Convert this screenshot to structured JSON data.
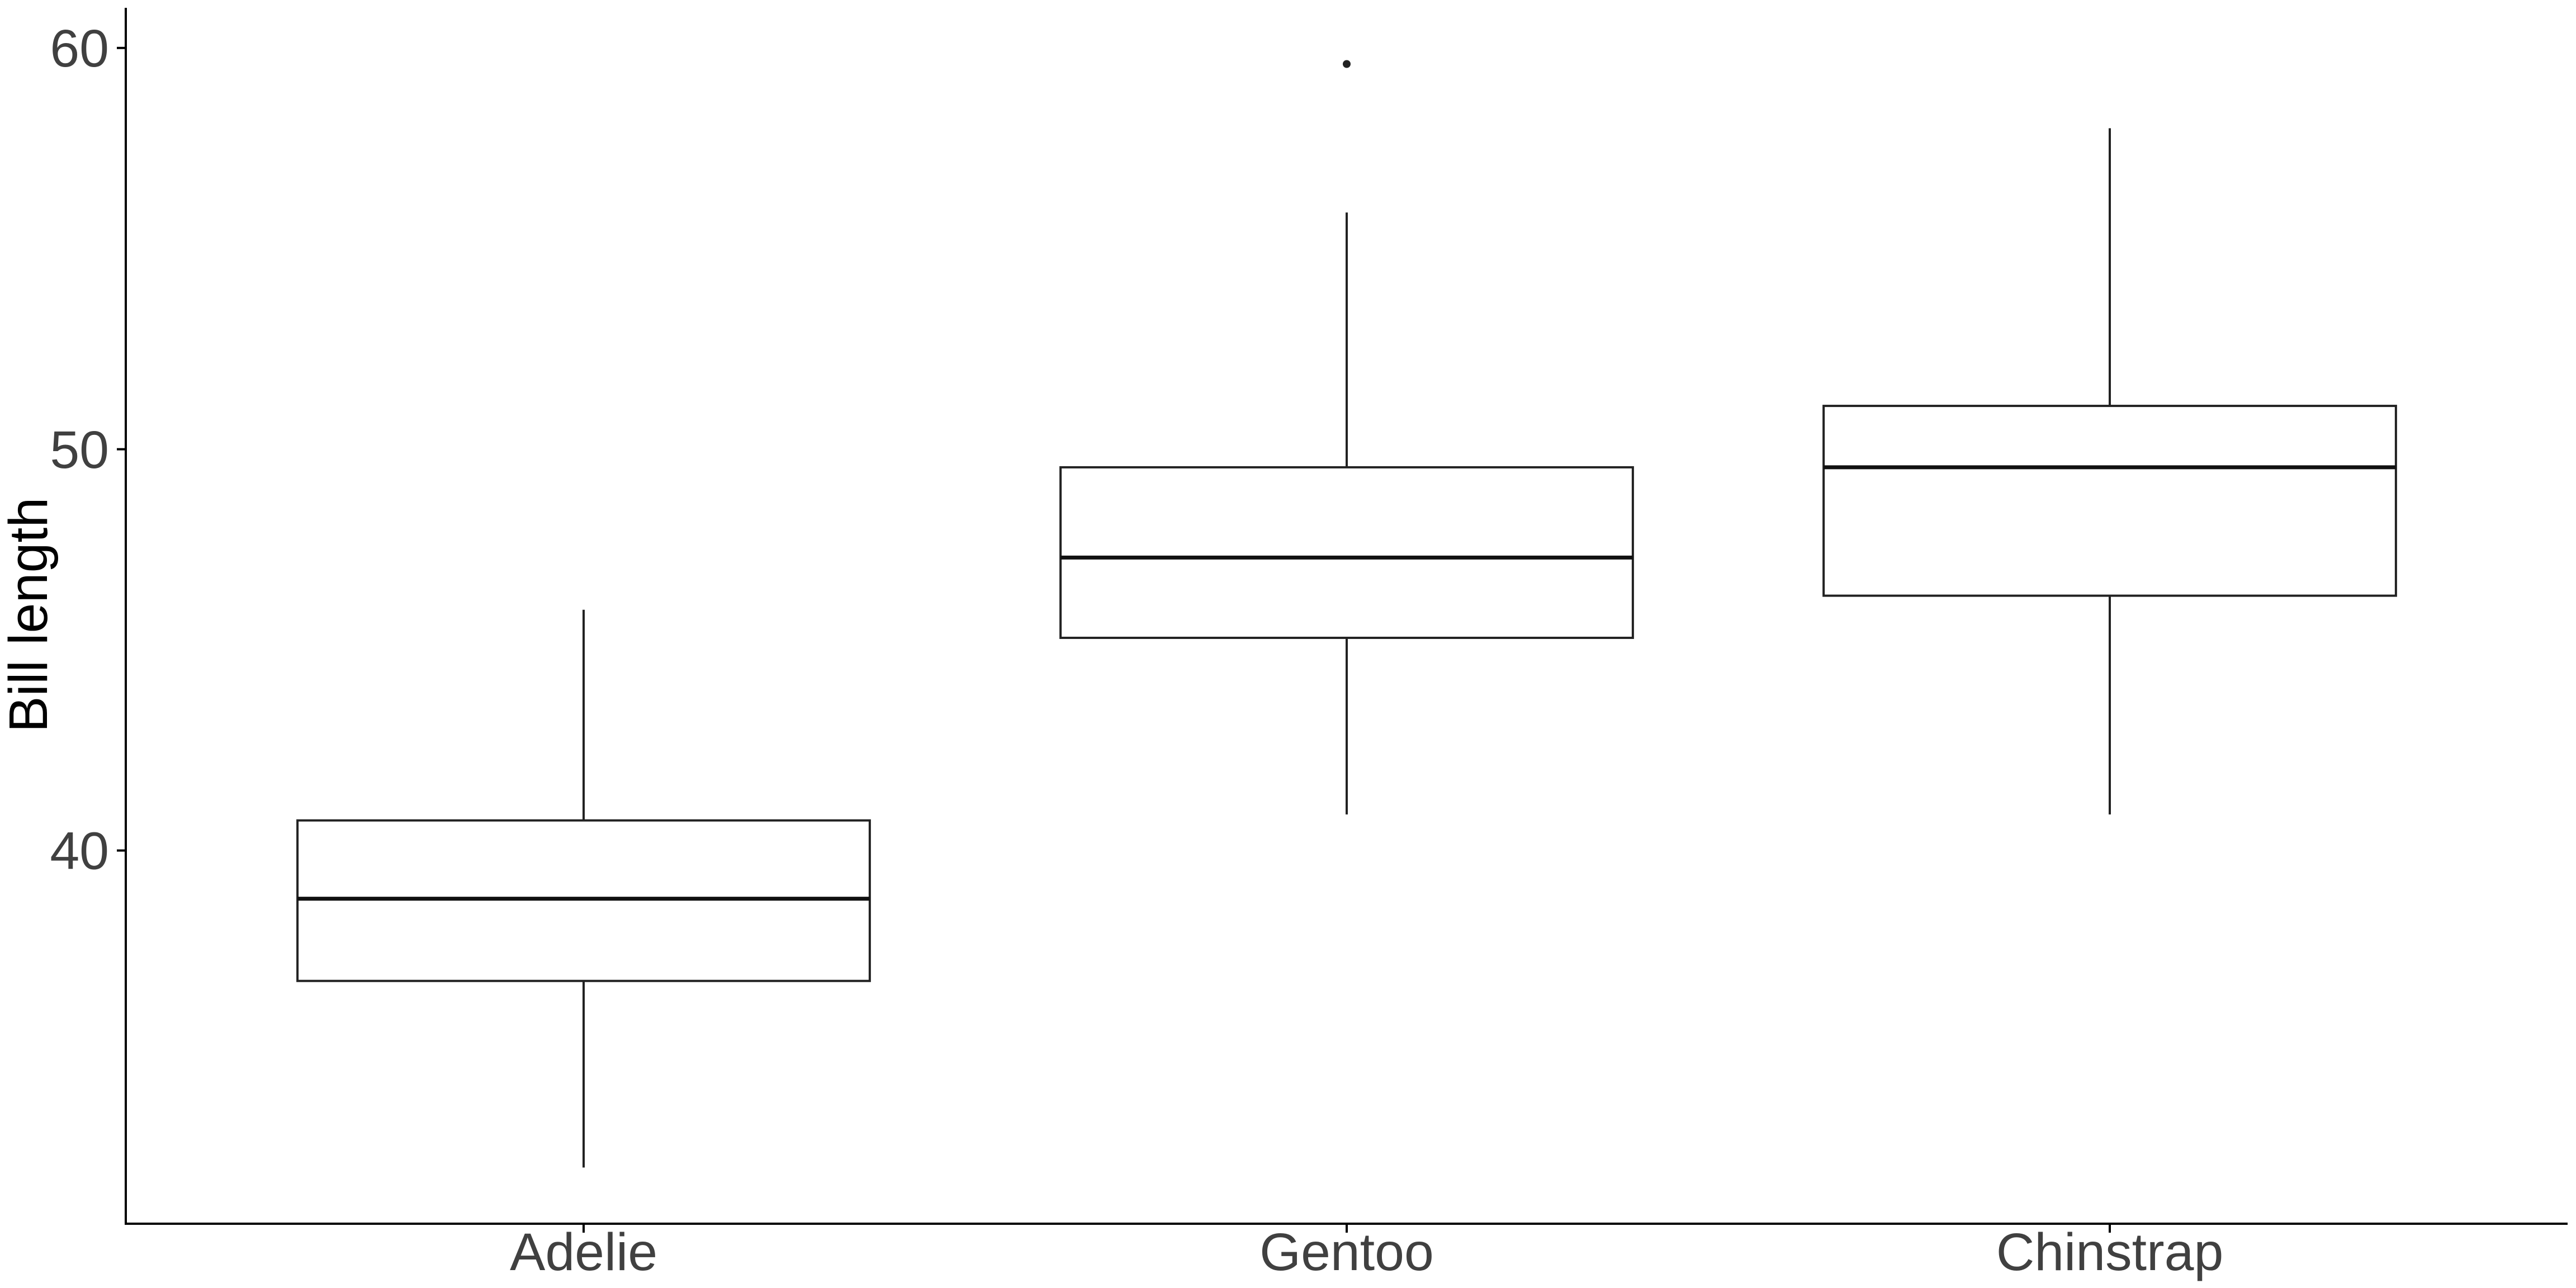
{
  "chart_data": {
    "type": "boxplot",
    "title": "",
    "xlabel": "",
    "ylabel": "Bill length",
    "categories": [
      "Adelie",
      "Gentoo",
      "Chinstrap"
    ],
    "yticks": [
      40,
      50,
      60
    ],
    "ylim": [
      30.7,
      61.0
    ],
    "grid": "off",
    "legend": "none",
    "series": [
      {
        "name": "Adelie",
        "whisker_low": 32.1,
        "q1": 36.75,
        "median": 38.8,
        "q3": 40.75,
        "whisker_high": 46.0,
        "outliers": []
      },
      {
        "name": "Gentoo",
        "whisker_low": 40.9,
        "q1": 45.3,
        "median": 47.3,
        "q3": 49.55,
        "whisker_high": 55.9,
        "outliers": [
          59.6
        ]
      },
      {
        "name": "Chinstrap",
        "whisker_low": 40.9,
        "q1": 46.35,
        "median": 49.55,
        "q3": 51.08,
        "whisker_high": 58.0,
        "outliers": []
      }
    ],
    "colors": {
      "background": "#ffffff",
      "box_fill": "#ffffff",
      "box_stroke": "#222222",
      "median_stroke": "#111111",
      "whisker_stroke": "#222222",
      "outlier_fill": "#222222",
      "axis_line": "#000000",
      "tick_label": "#404040",
      "axis_title": "#000000"
    }
  }
}
